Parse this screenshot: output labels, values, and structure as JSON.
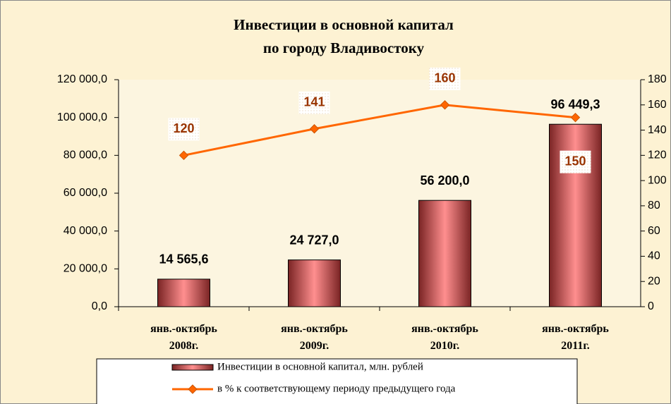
{
  "chart_data": {
    "type": "bar",
    "title": [
      "Инвестиции в основной капитал",
      "по городу Владивостоку"
    ],
    "categories": [
      "янв.-октябрь\n2008г.",
      "янв.-октябрь\n2009г.",
      "янв.-октябрь\n2010г.",
      "янв.-октябрь\n2011г."
    ],
    "series": [
      {
        "name": "Инвестиции в основной капитал, млн. рублей",
        "type": "bar",
        "color": "#c0504d",
        "values": [
          14565.6,
          24727.0,
          56200.0,
          96449.3
        ],
        "value_labels": [
          "14 565,6",
          "24 727,0",
          "56 200,0",
          "96 449,3"
        ]
      },
      {
        "name": "в % к соответствующему периоду предыдущего года",
        "type": "line",
        "axis": "y2",
        "color": "#ff6600",
        "values": [
          120,
          141,
          160,
          150
        ]
      }
    ],
    "ylim": [
      0,
      120000
    ],
    "yticks": [
      {
        "value": 0,
        "label": "0,0"
      },
      {
        "value": 20000,
        "label": "20 000,0"
      },
      {
        "value": 40000,
        "label": "40 000,0"
      },
      {
        "value": 60000,
        "label": "60 000,0"
      },
      {
        "value": 80000,
        "label": "80 000,0"
      },
      {
        "value": 100000,
        "label": "100 000,0"
      },
      {
        "value": 120000,
        "label": "120 000,0"
      }
    ],
    "y2lim": [
      0,
      180
    ],
    "y2ticks": [
      0,
      20,
      40,
      60,
      80,
      100,
      120,
      140,
      160,
      180
    ]
  }
}
